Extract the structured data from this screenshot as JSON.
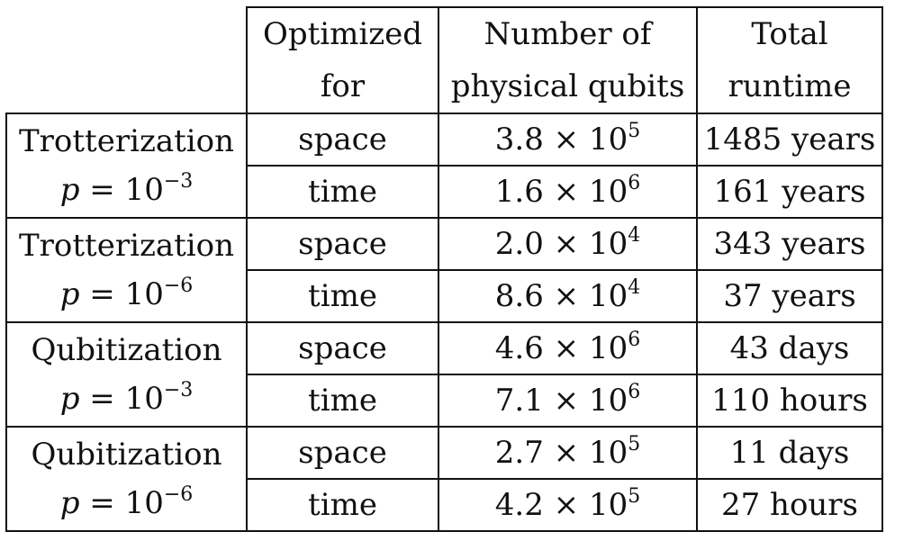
{
  "headers": {
    "optimized_line1": "Optimized",
    "optimized_line2": "for",
    "qubits_line1": "Number of",
    "qubits_line2": "physical qubits",
    "runtime_line1": "Total",
    "runtime_line2": "runtime"
  },
  "groups": [
    {
      "method": "Trotterization",
      "p_var": "p",
      "p_eq": " = 10",
      "p_exp": "−3",
      "rows": [
        {
          "optimized": "space",
          "mantissa": "3.8 × 10",
          "exp": "5",
          "runtime": "1485 years"
        },
        {
          "optimized": "time",
          "mantissa": "1.6 × 10",
          "exp": "6",
          "runtime": "161 years"
        }
      ]
    },
    {
      "method": "Trotterization",
      "p_var": "p",
      "p_eq": " = 10",
      "p_exp": "−6",
      "rows": [
        {
          "optimized": "space",
          "mantissa": "2.0 × 10",
          "exp": "4",
          "runtime": "343 years"
        },
        {
          "optimized": "time",
          "mantissa": "8.6 × 10",
          "exp": "4",
          "runtime": "37 years"
        }
      ]
    },
    {
      "method": "Qubitization",
      "p_var": "p",
      "p_eq": " = 10",
      "p_exp": "−3",
      "rows": [
        {
          "optimized": "space",
          "mantissa": "4.6 × 10",
          "exp": "6",
          "runtime": "43 days"
        },
        {
          "optimized": "time",
          "mantissa": "7.1 × 10",
          "exp": "6",
          "runtime": "110 hours"
        }
      ]
    },
    {
      "method": "Qubitization",
      "p_var": "p",
      "p_eq": " = 10",
      "p_exp": "−6",
      "rows": [
        {
          "optimized": "space",
          "mantissa": "2.7 × 10",
          "exp": "5",
          "runtime": "11 days"
        },
        {
          "optimized": "time",
          "mantissa": "4.2 × 10",
          "exp": "5",
          "runtime": "27 hours"
        }
      ]
    }
  ]
}
